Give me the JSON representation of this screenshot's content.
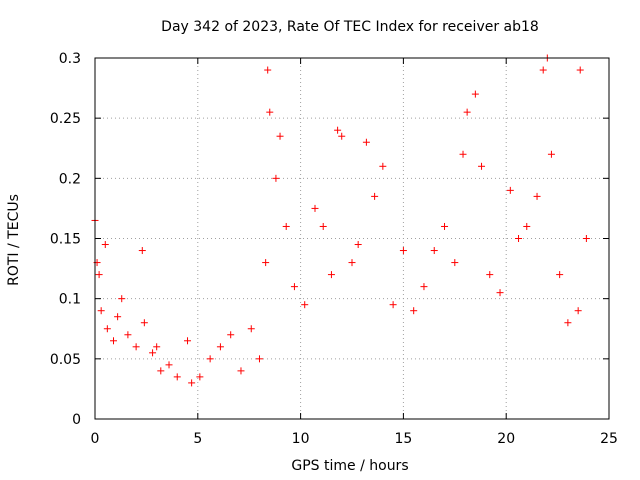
{
  "chart_data": {
    "type": "scatter",
    "title": "Day 342 of 2023, Rate Of TEC Index for receiver ab18",
    "xlabel": "GPS time / hours",
    "ylabel": "ROTI / TECUs",
    "xlim": [
      0,
      25
    ],
    "ylim": [
      0,
      0.3
    ],
    "xticks": [
      "0",
      "5",
      "10",
      "15",
      "20",
      "25"
    ],
    "yticks": [
      "0",
      "0.05",
      "0.1",
      "0.15",
      "0.2",
      "0.25",
      "0.3"
    ],
    "grid": true,
    "marker": "plus",
    "color": "#ff0000",
    "series": [
      {
        "x": [
          0.0,
          0.1,
          0.2,
          0.3,
          0.5,
          0.6,
          0.9,
          1.1,
          1.3,
          1.6,
          2.0,
          2.3,
          2.4,
          2.8,
          3.0,
          3.2,
          3.6,
          4.0,
          4.5,
          4.7,
          5.1,
          5.6,
          6.1,
          6.6,
          7.1,
          7.6,
          8.0,
          8.3,
          8.4,
          8.5,
          8.8,
          9.0,
          9.3,
          9.7,
          10.2,
          10.7,
          11.1,
          11.5,
          11.8,
          12.0,
          12.5,
          12.8,
          13.2,
          13.6,
          14.0,
          14.5,
          15.0,
          15.5,
          16.0,
          16.5,
          17.0,
          17.5,
          17.9,
          18.1,
          18.5,
          18.8,
          19.2,
          19.7,
          20.2,
          20.6,
          21.0,
          21.5,
          21.8,
          22.0,
          22.2,
          22.6,
          23.0,
          23.5,
          23.6,
          23.9
        ],
        "y": [
          0.165,
          0.13,
          0.12,
          0.09,
          0.145,
          0.075,
          0.065,
          0.085,
          0.1,
          0.07,
          0.06,
          0.14,
          0.08,
          0.055,
          0.06,
          0.04,
          0.045,
          0.035,
          0.065,
          0.03,
          0.035,
          0.05,
          0.06,
          0.07,
          0.04,
          0.075,
          0.05,
          0.13,
          0.29,
          0.255,
          0.2,
          0.235,
          0.16,
          0.11,
          0.095,
          0.175,
          0.16,
          0.12,
          0.24,
          0.235,
          0.13,
          0.145,
          0.23,
          0.185,
          0.21,
          0.095,
          0.14,
          0.09,
          0.11,
          0.14,
          0.16,
          0.13,
          0.22,
          0.255,
          0.27,
          0.21,
          0.12,
          0.105,
          0.19,
          0.15,
          0.16,
          0.185,
          0.29,
          0.3,
          0.22,
          0.12,
          0.08,
          0.09,
          0.29,
          0.15
        ]
      }
    ]
  }
}
